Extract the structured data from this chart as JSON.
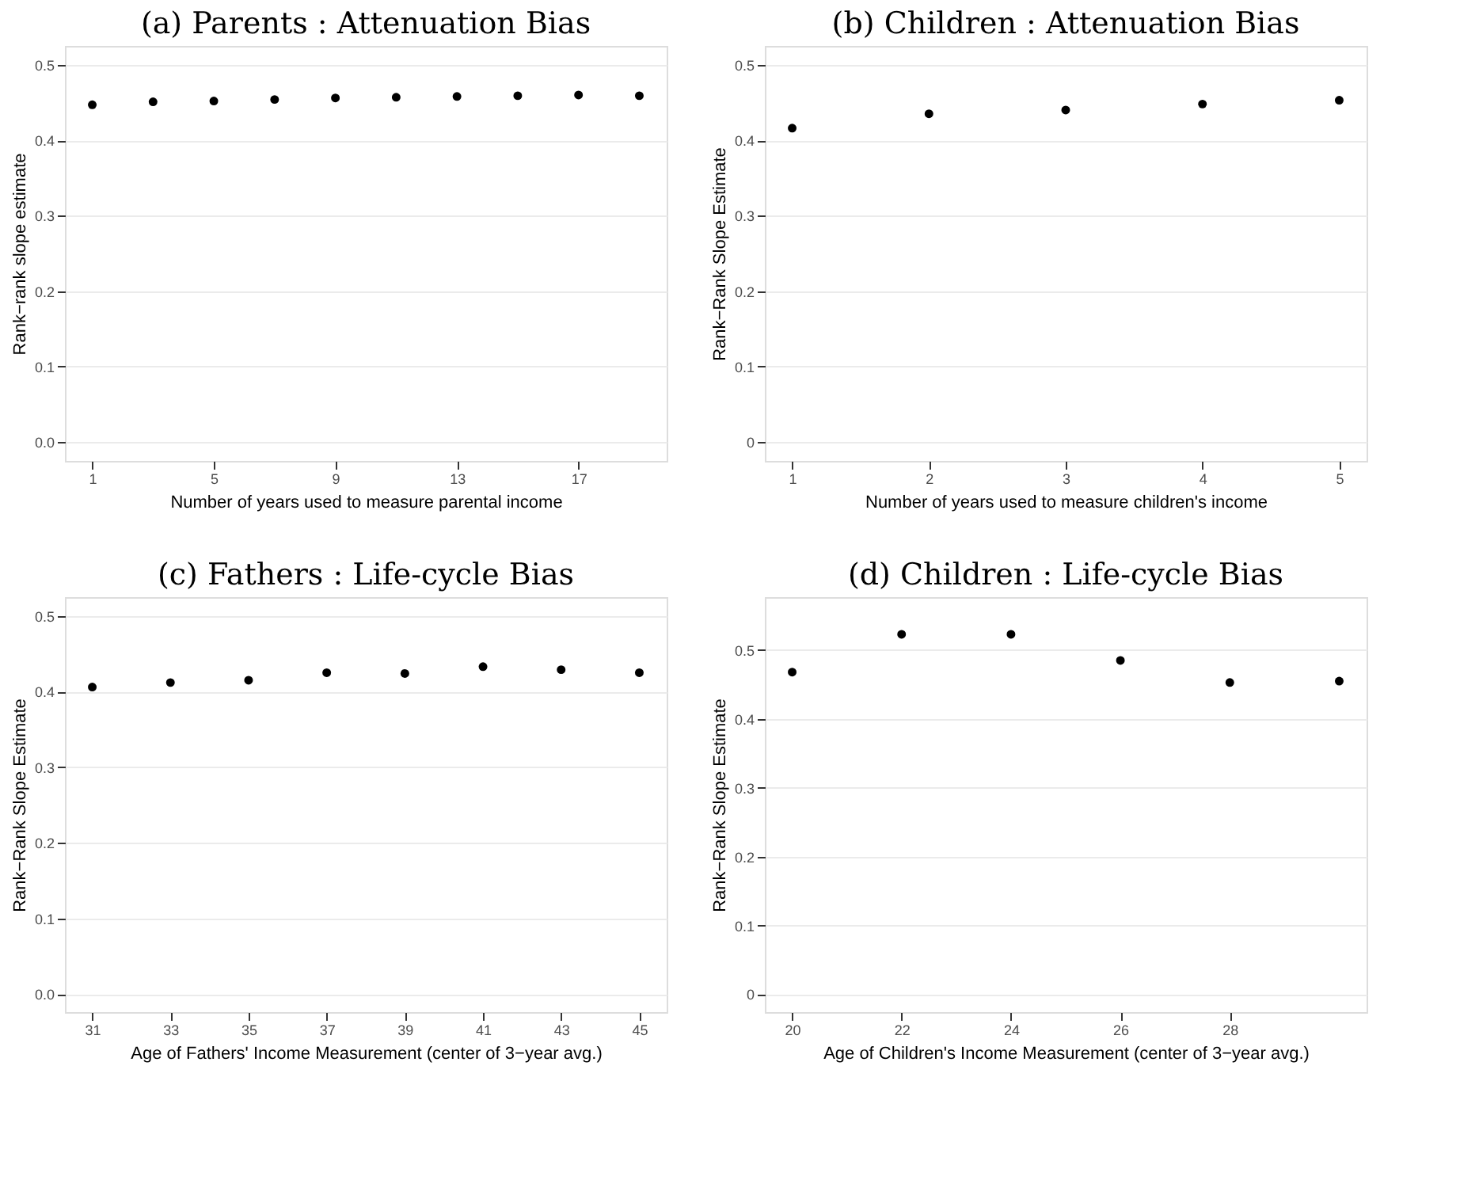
{
  "chart_data": [
    {
      "type": "scatter",
      "title": "(a) Parents : Attenuation Bias",
      "xlabel": "Number of years used to measure parental income",
      "ylabel": "Rank−rank slope estimate",
      "x": [
        1,
        3,
        5,
        7,
        9,
        11,
        13,
        15,
        17,
        19
      ],
      "series": [
        {
          "color": "#000000",
          "values": [
            0.447,
            0.451,
            0.452,
            0.454,
            0.456,
            0.457,
            0.458,
            0.459,
            0.46,
            0.459
          ]
        }
      ],
      "xlim": [
        0.1,
        19.9
      ],
      "xticks": [
        1,
        5,
        9,
        13,
        17
      ],
      "ylim": [
        -0.025,
        0.525
      ],
      "yticks": [
        {
          "value": 0,
          "label": "0.0"
        },
        0.1,
        0.2,
        0.3,
        0.4,
        0.5
      ],
      "grid": "y",
      "marker": "circle"
    },
    {
      "type": "scatter",
      "title": "(b) Children : Attenuation Bias",
      "xlabel": "Number of years used to measure children's income",
      "ylabel": "Rank−Rank Slope Estimate",
      "x": [
        1,
        2,
        3,
        4,
        5
      ],
      "series": [
        {
          "color": "#000000",
          "values": [
            0.416,
            0.435,
            0.44,
            0.448,
            0.453
          ]
        }
      ],
      "xlim": [
        0.8,
        5.2
      ],
      "xticks": [
        1,
        2,
        3,
        4,
        5
      ],
      "ylim": [
        -0.025,
        0.525
      ],
      "yticks": [
        0,
        0.1,
        0.2,
        0.3,
        0.4,
        0.5
      ],
      "grid": "y",
      "marker": "circle"
    },
    {
      "type": "scatter",
      "title": "(c) Fathers : Life-cycle Bias",
      "xlabel": "Age of Fathers' Income Measurement (center of 3−year avg.)",
      "ylabel": "Rank−Rank Slope Estimate",
      "x": [
        31,
        33,
        35,
        37,
        39,
        41,
        43,
        45
      ],
      "series": [
        {
          "color": "#000000",
          "values": [
            0.406,
            0.412,
            0.415,
            0.425,
            0.424,
            0.433,
            0.429,
            0.425
          ]
        }
      ],
      "xlim": [
        30.3,
        45.7
      ],
      "xticks": [
        31,
        33,
        35,
        37,
        39,
        41,
        43,
        45
      ],
      "ylim": [
        -0.024,
        0.525
      ],
      "yticks": [
        {
          "value": 0,
          "label": "0.0"
        },
        0.1,
        0.2,
        0.3,
        0.4,
        0.5
      ],
      "grid": "y",
      "marker": "circle"
    },
    {
      "type": "scatter",
      "title": "(d) Children : Life-cycle Bias",
      "xlabel": "Age of Children's Income Measurement (center of 3−year avg.)",
      "ylabel": "Rank−Rank Slope Estimate",
      "x": [
        20,
        22,
        24,
        26,
        28,
        30
      ],
      "series": [
        {
          "color": "#000000",
          "values": [
            0.468,
            0.523,
            0.523,
            0.485,
            0.453,
            0.455
          ]
        }
      ],
      "xlim": [
        19.5,
        30.5
      ],
      "xticks": [
        20,
        22,
        24,
        26,
        28
      ],
      "ylim": [
        -0.026,
        0.577
      ],
      "yticks": [
        0,
        0.1,
        0.2,
        0.3,
        0.4,
        0.5
      ],
      "grid": "y",
      "marker": "circle"
    }
  ]
}
